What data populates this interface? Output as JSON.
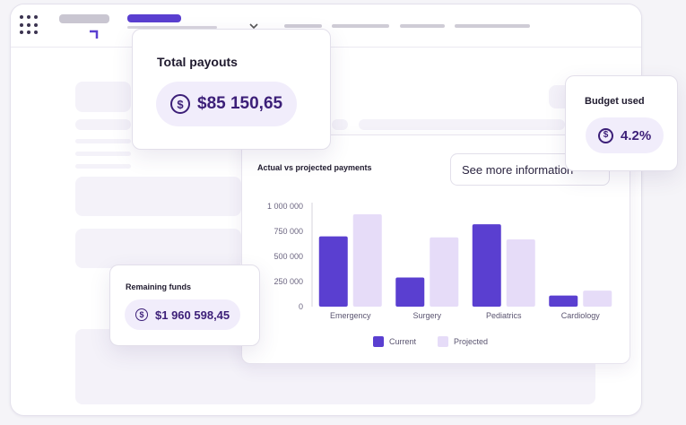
{
  "colors": {
    "current": "#5a3fd0",
    "projected": "#e6dcf8",
    "accent_text": "#3c1f78",
    "pill_bg": "#f1edfb"
  },
  "icons": {
    "menu": "grid-dots-icon",
    "currency": "dollar-circle-icon",
    "chevron": "chevron-down-icon"
  },
  "total_payouts": {
    "label": "Total payouts",
    "value": "$85 150,65"
  },
  "budget_used": {
    "label": "Budget used",
    "value": "4.2%"
  },
  "remaining_funds": {
    "label": "Remaining funds",
    "value": "$1 960 598,45"
  },
  "chart_card": {
    "title": "Actual vs projected payments",
    "see_more": "See more information"
  },
  "chart_data": {
    "type": "bar",
    "title": "Actual vs projected payments",
    "categories": [
      "Emergency",
      "Surgery",
      "Pediatrics",
      "Cardiology"
    ],
    "series": [
      {
        "name": "Current",
        "values": [
          700000,
          290000,
          820000,
          110000
        ]
      },
      {
        "name": "Projected",
        "values": [
          920000,
          690000,
          670000,
          160000
        ]
      }
    ],
    "yticks": [
      "0",
      "250 000",
      "500 000",
      "750 000",
      "1 000 000"
    ],
    "ylim": [
      0,
      1000000
    ],
    "grid": false,
    "legend": "bottom"
  }
}
